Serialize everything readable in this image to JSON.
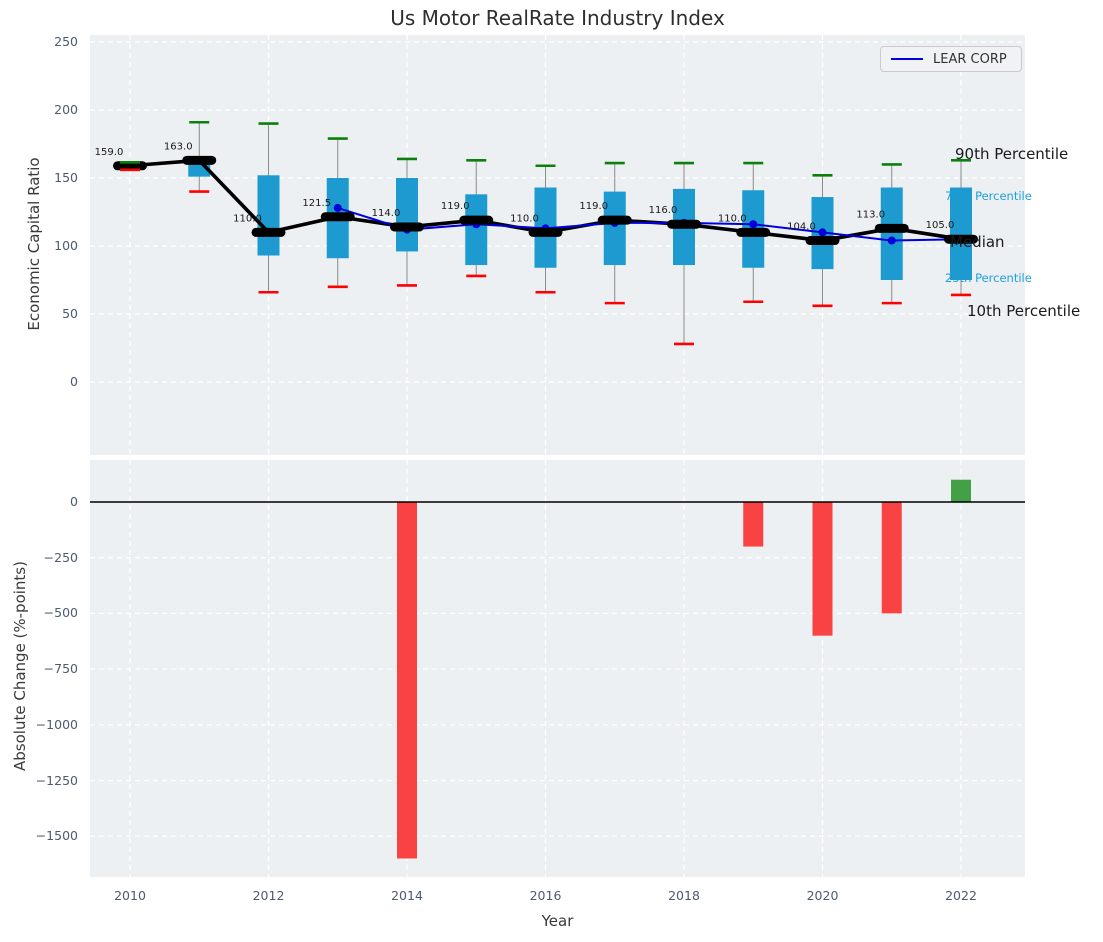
{
  "title": "Us Motor RealRate Industry Index",
  "legend": {
    "label": "LEAR CORP",
    "line_color": "#0000dd"
  },
  "colors": {
    "plot_background": "#ecf0f2",
    "box_fill": "#1d9bd1",
    "whisker": "#8a8a8a",
    "cap_90th": "#0d7f0d",
    "cap_10th": "#fe0000",
    "median_marker": "#000000",
    "median_line": "#000000",
    "lear_line": "#0000dd",
    "bar_negative": "#f94343",
    "bar_positive": "#43a047",
    "tick_label": "#4c5b70",
    "percentile_label_blue": "#1f9ede",
    "annotation_black": "#1a1a1a",
    "grid": "#ffffff"
  },
  "top_axis": {
    "ylabel": "Economic Capital Ratio",
    "ytick_labels": [
      "250",
      "200",
      "150",
      "100",
      "50",
      "0"
    ],
    "ytick_values": [
      250,
      200,
      150,
      100,
      50,
      0
    ]
  },
  "bottom_axis": {
    "ylabel": "Absolute Change (%-points)",
    "xlabel": "Year",
    "ytick_labels": [
      "0",
      "−250",
      "−500",
      "−750",
      "−1000",
      "−1250",
      "−1500"
    ],
    "ytick_values": [
      0,
      -250,
      -500,
      -750,
      -1000,
      -1250,
      -1500
    ],
    "xtick_labels": [
      "2010",
      "2012",
      "2014",
      "2016",
      "2018",
      "2020",
      "2022"
    ],
    "xtick_values": [
      2010,
      2012,
      2014,
      2016,
      2018,
      2020,
      2022
    ]
  },
  "right_labels": {
    "p90": "90th Percentile",
    "p75": "75th Percentile",
    "median": "Median",
    "p25": "25th Percentile",
    "p10": "10th Percentile"
  },
  "chart_data": [
    {
      "type": "boxplot+line",
      "title": "Us Motor RealRate Industry Index",
      "ylabel": "Economic Capital Ratio",
      "ylim": [
        -53,
        255
      ],
      "yticks": [
        0,
        50,
        100,
        150,
        200,
        250
      ],
      "grid": true,
      "legend_position": "upper right",
      "years": [
        2010,
        2011,
        2012,
        2013,
        2014,
        2015,
        2016,
        2017,
        2018,
        2019,
        2020,
        2021,
        2022
      ],
      "median": [
        159,
        163,
        110,
        121.5,
        114,
        119,
        110,
        119,
        116,
        110,
        104,
        113,
        105
      ],
      "median_labels": [
        "159.0",
        "163.0",
        "110.0",
        "121.5",
        "114.0",
        "119.0",
        "110.0",
        "119.0",
        "116.0",
        "110.0",
        "104.0",
        "113.0",
        "105.0"
      ],
      "p90": [
        161.5,
        191,
        190,
        179,
        164,
        163,
        159,
        161,
        161,
        161,
        152,
        160,
        163
      ],
      "p75": [
        160,
        161,
        152,
        150,
        150,
        138,
        143,
        140,
        142,
        141,
        136,
        143,
        143
      ],
      "p25": [
        157,
        151,
        93,
        91,
        96,
        86,
        84,
        86,
        86,
        84,
        83,
        75,
        75
      ],
      "p10": [
        156,
        140,
        66,
        70,
        71,
        78,
        66,
        58,
        28,
        59,
        56,
        58,
        64
      ],
      "lear_corp": {
        "name": "LEAR CORP",
        "years": [
          2013,
          2014,
          2015,
          2016,
          2017,
          2018,
          2019,
          2020,
          2021,
          2022
        ],
        "values": [
          128,
          112,
          116,
          113,
          117,
          117,
          116,
          110,
          104,
          105
        ]
      }
    },
    {
      "type": "bar",
      "ylabel": "Absolute Change (%-points)",
      "xlabel": "Year",
      "ylim": [
        -1700,
        190
      ],
      "yticks": [
        0,
        -250,
        -500,
        -750,
        -1000,
        -1250,
        -1500
      ],
      "grid": true,
      "years": [
        2010,
        2011,
        2012,
        2013,
        2014,
        2015,
        2016,
        2017,
        2018,
        2019,
        2020,
        2021,
        2022
      ],
      "values": [
        0,
        0,
        0,
        0,
        -1600,
        0,
        0,
        0,
        0,
        -200,
        -600,
        -500,
        100
      ]
    }
  ]
}
